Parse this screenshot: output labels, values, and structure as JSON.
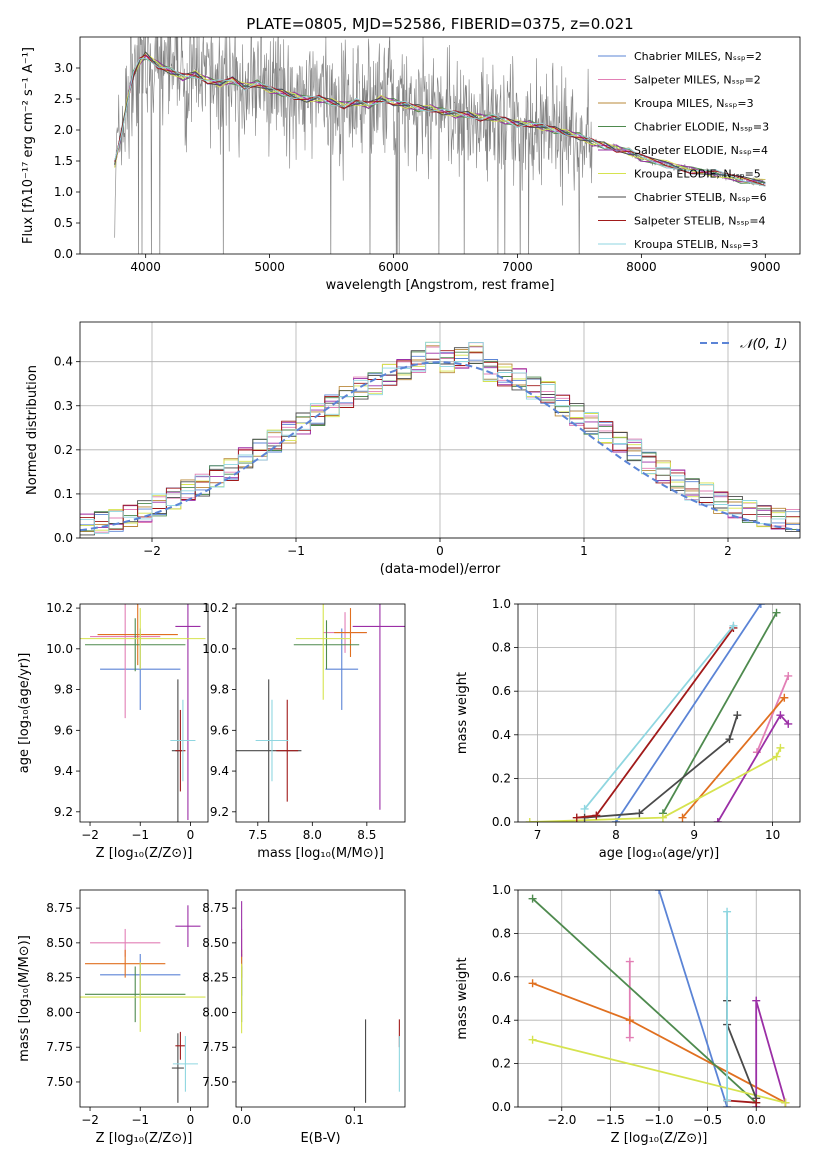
{
  "chart_data": [
    {
      "type": "line",
      "title": "PLATE=0805, MJD=52586, FIBERID=0375, z=0.021",
      "xlabel": "wavelength [Angstrom, rest frame]",
      "ylabel": "Flux [fλ10⁻¹⁷ erg cm⁻² s⁻¹ A⁻¹]",
      "xlim": [
        3470,
        9280
      ],
      "ylim": [
        0,
        3.5
      ],
      "xticks": [
        "4000",
        "5000",
        "6000",
        "7000",
        "8000",
        "9000"
      ],
      "yticks": [
        "0.0",
        "0.5",
        "1.0",
        "1.5",
        "2.0",
        "2.5",
        "3.0"
      ],
      "grid": false,
      "legend_position": "top-right",
      "legend": [
        {
          "label": "Chabrier MILES, Nₛₛₚ=2",
          "color": "#5b84d6"
        },
        {
          "label": "Salpeter MILES, Nₛₛₚ=2",
          "color": "#e27fb5"
        },
        {
          "label": "Kroupa MILES, Nₛₛₚ=3",
          "color": "#b9883a"
        },
        {
          "label": "Chabrier ELODIE, Nₛₛₚ=3",
          "color": "#4e8a4e"
        },
        {
          "label": "Salpeter ELODIE, Nₛₛₚ=4",
          "color": "#9b2fa6"
        },
        {
          "label": "Kroupa ELODIE, Nₛₛₚ=5",
          "color": "#d6e34f"
        },
        {
          "label": "Chabrier STELIB, Nₛₛₚ=6",
          "color": "#4a4a4a"
        },
        {
          "label": "Salpeter STELIB, Nₛₛₚ=4",
          "color": "#a11a1a"
        },
        {
          "label": "Kroupa STELIB, Nₛₛₚ=3",
          "color": "#8fd6e0"
        }
      ],
      "data_color": "#808080",
      "continuum": {
        "x": [
          3750,
          3800,
          3850,
          3900,
          3950,
          4000,
          4100,
          4200,
          4300,
          4400,
          4500,
          4600,
          4700,
          4800,
          4900,
          5000,
          5100,
          5200,
          5300,
          5400,
          5500,
          5600,
          5700,
          5800,
          5900,
          6000,
          6100,
          6200,
          6300,
          6400,
          6500,
          6600,
          6700,
          6800,
          6900,
          7000,
          7100,
          7200,
          7300,
          7400,
          7500,
          7600,
          7700,
          7800,
          7900,
          8000,
          8200,
          8400,
          8600,
          8800,
          9000
        ],
        "y": [
          1.45,
          1.9,
          2.45,
          2.9,
          3.1,
          3.2,
          3.05,
          2.95,
          2.85,
          2.9,
          2.8,
          2.75,
          2.8,
          2.7,
          2.75,
          2.65,
          2.6,
          2.55,
          2.5,
          2.5,
          2.45,
          2.4,
          2.45,
          2.4,
          2.5,
          2.45,
          2.4,
          2.35,
          2.35,
          2.3,
          2.25,
          2.25,
          2.2,
          2.2,
          2.15,
          2.1,
          2.1,
          2.05,
          2.0,
          1.95,
          1.9,
          1.8,
          1.75,
          1.7,
          1.65,
          1.55,
          1.45,
          1.35,
          1.3,
          1.2,
          1.15
        ]
      }
    },
    {
      "type": "histogram",
      "xlabel": "(data-model)/error",
      "ylabel": "Normed distribution",
      "xlim": [
        -2.5,
        2.5
      ],
      "ylim": [
        0,
        0.49
      ],
      "xticks": [
        "−2",
        "−1",
        "0",
        "1",
        "2"
      ],
      "yticks": [
        "0.0",
        "0.1",
        "0.2",
        "0.3",
        "0.4"
      ],
      "grid": true,
      "legend": [
        {
          "label": "𝒩(0, 1)",
          "color": "#5b84d6"
        }
      ],
      "legend_position": "top-right",
      "bin_width": 0.1,
      "bin_start": -2.5,
      "values": [
        0.03,
        0.035,
        0.04,
        0.05,
        0.06,
        0.075,
        0.09,
        0.11,
        0.12,
        0.14,
        0.155,
        0.18,
        0.2,
        0.22,
        0.24,
        0.26,
        0.28,
        0.3,
        0.32,
        0.34,
        0.35,
        0.37,
        0.38,
        0.4,
        0.42,
        0.4,
        0.41,
        0.42,
        0.38,
        0.37,
        0.36,
        0.34,
        0.33,
        0.3,
        0.28,
        0.26,
        0.24,
        0.22,
        0.2,
        0.17,
        0.15,
        0.13,
        0.11,
        0.1,
        0.08,
        0.07,
        0.06,
        0.05,
        0.045,
        0.04
      ]
    },
    {
      "type": "scatter",
      "xlabel": "Z [log₁₀(Z/Z⊙)]",
      "ylabel": "age  [log₁₀(age/yr)]",
      "xlim": [
        -2.2,
        0.35
      ],
      "ylim": [
        9.15,
        10.22
      ],
      "xticks": [
        "−2",
        "−1",
        "0"
      ],
      "yticks": [
        "9.2",
        "9.4",
        "9.6",
        "9.8",
        "10.0",
        "10.2"
      ],
      "points": [
        {
          "x": -1.0,
          "y": 9.9,
          "xerr": 0.8,
          "yerr": 0.2,
          "color": "#5b84d6"
        },
        {
          "x": -1.3,
          "y": 10.06,
          "xerr": 0.7,
          "yerr": 0.4,
          "color": "#e27fb5"
        },
        {
          "x": -1.05,
          "y": 10.07,
          "xerr": 0.8,
          "yerr": 0.15,
          "color": "#e07020"
        },
        {
          "x": -1.1,
          "y": 10.02,
          "xerr": 1.0,
          "yerr": 0.13,
          "color": "#4e8a4e"
        },
        {
          "x": -0.05,
          "y": 10.11,
          "xerr": 0.25,
          "yerr": 0.95,
          "color": "#9b2fa6"
        },
        {
          "x": -1.0,
          "y": 10.05,
          "xerr": 1.3,
          "yerr": 0.15,
          "color": "#d6e34f"
        },
        {
          "x": -0.25,
          "y": 9.5,
          "xerr": 0.12,
          "yerr": 0.35,
          "color": "#4a4a4a"
        },
        {
          "x": -0.2,
          "y": 9.5,
          "xerr": 0.1,
          "yerr": 0.2,
          "color": "#a11a1a"
        },
        {
          "x": -0.15,
          "y": 9.55,
          "xerr": 0.25,
          "yerr": 0.2,
          "color": "#8fd6e0"
        }
      ]
    },
    {
      "type": "scatter",
      "xlabel": "mass [log₁₀(M/M⊙)]",
      "ylabel": "",
      "xlim": [
        7.3,
        8.85
      ],
      "ylim": [
        9.15,
        10.22
      ],
      "xticks": [
        "7.5",
        "8.0",
        "8.5"
      ],
      "yticks": [
        "9.2",
        "9.4",
        "9.6",
        "9.8",
        "10.0",
        "10.2"
      ],
      "points": [
        {
          "x": 8.27,
          "y": 9.9,
          "xerr": 0.15,
          "yerr": 0.2,
          "color": "#5b84d6"
        },
        {
          "x": 8.3,
          "y": 10.08,
          "xerr": 0.2,
          "yerr": 0.1,
          "color": "#e27fb5"
        },
        {
          "x": 8.35,
          "y": 10.08,
          "xerr": 0.15,
          "yerr": 0.12,
          "color": "#e07020"
        },
        {
          "x": 8.13,
          "y": 10.02,
          "xerr": 0.3,
          "yerr": 0.12,
          "color": "#4e8a4e"
        },
        {
          "x": 8.62,
          "y": 10.11,
          "xerr": 0.25,
          "yerr": 0.9,
          "color": "#9b2fa6"
        },
        {
          "x": 8.1,
          "y": 10.05,
          "xerr": 0.25,
          "yerr": 0.3,
          "color": "#d6e34f"
        },
        {
          "x": 7.6,
          "y": 9.5,
          "xerr": 0.3,
          "yerr": 0.35,
          "color": "#4a4a4a"
        },
        {
          "x": 7.77,
          "y": 9.5,
          "xerr": 0.1,
          "yerr": 0.25,
          "color": "#a11a1a"
        },
        {
          "x": 7.63,
          "y": 9.55,
          "xerr": 0.15,
          "yerr": 0.2,
          "color": "#8fd6e0"
        }
      ]
    },
    {
      "type": "line",
      "xlabel": "age  [log₁₀(age/yr)]",
      "ylabel": "mass weight",
      "xlim": [
        6.75,
        10.35
      ],
      "ylim": [
        0,
        1.0
      ],
      "xticks": [
        "7",
        "8",
        "9",
        "10"
      ],
      "yticks": [
        "0.0",
        "0.2",
        "0.4",
        "0.6",
        "0.8",
        "1.0"
      ],
      "grid": true,
      "series": [
        {
          "x": [
            8.0,
            9.85
          ],
          "y": [
            0.0,
            1.0
          ],
          "color": "#5b84d6"
        },
        {
          "x": [
            9.8,
            10.2
          ],
          "y": [
            0.32,
            0.67
          ],
          "color": "#e27fb5"
        },
        {
          "x": [
            8.85,
            10.15
          ],
          "y": [
            0.02,
            0.57
          ],
          "color": "#e07020"
        },
        {
          "x": [
            8.6,
            10.05
          ],
          "y": [
            0.04,
            0.96
          ],
          "color": "#4e8a4e"
        },
        {
          "x": [
            9.3,
            10.1,
            10.2
          ],
          "y": [
            0.0,
            0.49,
            0.45
          ],
          "color": "#9b2fa6"
        },
        {
          "x": [
            6.9,
            8.6,
            10.05,
            10.1
          ],
          "y": [
            0.0,
            0.02,
            0.3,
            0.34
          ],
          "color": "#d6e34f"
        },
        {
          "x": [
            7.6,
            8.3,
            9.45,
            9.55
          ],
          "y": [
            0.02,
            0.04,
            0.38,
            0.49
          ],
          "color": "#4a4a4a"
        },
        {
          "x": [
            7.5,
            7.75,
            9.5
          ],
          "y": [
            0.02,
            0.03,
            0.89
          ],
          "color": "#a11a1a"
        },
        {
          "x": [
            7.6,
            9.5
          ],
          "y": [
            0.06,
            0.9
          ],
          "color": "#8fd6e0"
        }
      ]
    },
    {
      "type": "scatter",
      "xlabel": "Z [log₁₀(Z/Z⊙)]",
      "ylabel": "mass [log₁₀(M/M⊙)]",
      "xlim": [
        -2.2,
        0.35
      ],
      "ylim": [
        7.32,
        8.88
      ],
      "xticks": [
        "−2",
        "−1",
        "0"
      ],
      "yticks": [
        "7.50",
        "7.75",
        "8.00",
        "8.25",
        "8.50",
        "8.75"
      ],
      "points": [
        {
          "x": -1.0,
          "y": 8.27,
          "xerr": 0.8,
          "yerr": 0.15,
          "color": "#5b84d6"
        },
        {
          "x": -1.3,
          "y": 8.5,
          "xerr": 0.7,
          "yerr": 0.1,
          "color": "#e27fb5"
        },
        {
          "x": -1.3,
          "y": 8.35,
          "xerr": 0.8,
          "yerr": 0.1,
          "color": "#e07020"
        },
        {
          "x": -1.1,
          "y": 8.13,
          "xerr": 1.0,
          "yerr": 0.2,
          "color": "#4e8a4e"
        },
        {
          "x": -0.05,
          "y": 8.62,
          "xerr": 0.25,
          "yerr": 0.15,
          "color": "#9b2fa6"
        },
        {
          "x": -1.0,
          "y": 8.11,
          "xerr": 1.3,
          "yerr": 0.25,
          "color": "#d6e34f"
        },
        {
          "x": -0.25,
          "y": 7.6,
          "xerr": 0.12,
          "yerr": 0.25,
          "color": "#4a4a4a"
        },
        {
          "x": -0.2,
          "y": 7.76,
          "xerr": 0.1,
          "yerr": 0.1,
          "color": "#a11a1a"
        },
        {
          "x": -0.1,
          "y": 7.63,
          "xerr": 0.25,
          "yerr": 0.2,
          "color": "#8fd6e0"
        }
      ]
    },
    {
      "type": "scatter",
      "xlabel": "E(B-V)",
      "ylabel": "",
      "xlim": [
        -0.005,
        0.145
      ],
      "ylim": [
        7.32,
        8.88
      ],
      "xticks": [
        "0.0",
        "0.1"
      ],
      "yticks": [
        "7.50",
        "7.75",
        "8.00",
        "8.25",
        "8.50",
        "8.75"
      ],
      "points": [
        {
          "x": 0.0,
          "y": 8.27,
          "xerr": 0,
          "yerr": 0.15,
          "color": "#5b84d6"
        },
        {
          "x": 0.0,
          "y": 8.5,
          "xerr": 0,
          "yerr": 0.1,
          "color": "#e27fb5"
        },
        {
          "x": 0.0,
          "y": 8.35,
          "xerr": 0,
          "yerr": 0.1,
          "color": "#e07020"
        },
        {
          "x": 0.0,
          "y": 8.13,
          "xerr": 0,
          "yerr": 0.2,
          "color": "#4e8a4e"
        },
        {
          "x": 0.0,
          "y": 8.6,
          "xerr": 0,
          "yerr": 0.2,
          "color": "#9b2fa6"
        },
        {
          "x": 0.0,
          "y": 8.1,
          "xerr": 0,
          "yerr": 0.25,
          "color": "#d6e34f"
        },
        {
          "x": 0.11,
          "y": 7.65,
          "xerr": 0,
          "yerr": 0.3,
          "color": "#4a4a4a"
        },
        {
          "x": 0.14,
          "y": 7.85,
          "xerr": 0,
          "yerr": 0.1,
          "color": "#a11a1a"
        },
        {
          "x": 0.14,
          "y": 7.63,
          "xerr": 0,
          "yerr": 0.2,
          "color": "#8fd6e0"
        }
      ]
    },
    {
      "type": "line",
      "xlabel": "Z [log₁₀(Z/Z⊙)]",
      "ylabel": "mass weight",
      "xlim": [
        -2.45,
        0.45
      ],
      "ylim": [
        0,
        1.0
      ],
      "xticks": [
        "−2.0",
        "−1.5",
        "−1.0",
        "−0.5",
        "0.0"
      ],
      "yticks": [
        "0.0",
        "0.2",
        "0.4",
        "0.6",
        "0.8",
        "1.0"
      ],
      "grid": true,
      "series": [
        {
          "x": [
            -1.0,
            -0.3
          ],
          "y": [
            1.0,
            0.0
          ],
          "color": "#5b84d6"
        },
        {
          "x": [
            -1.3,
            -1.3,
            -1.3
          ],
          "y": [
            0.32,
            0.4,
            0.67
          ],
          "color": "#e27fb5"
        },
        {
          "x": [
            -2.3,
            -1.3,
            0.3
          ],
          "y": [
            0.57,
            0.4,
            0.02
          ],
          "color": "#e07020"
        },
        {
          "x": [
            -2.3,
            0.0
          ],
          "y": [
            0.96,
            0.02
          ],
          "color": "#4e8a4e"
        },
        {
          "x": [
            0.0,
            0.0,
            0.3
          ],
          "y": [
            0.0,
            0.49,
            0.02
          ],
          "color": "#9b2fa6"
        },
        {
          "x": [
            -2.3,
            0.3
          ],
          "y": [
            0.31,
            0.02
          ],
          "color": "#d6e34f"
        },
        {
          "x": [
            -0.3,
            -0.3,
            0.0
          ],
          "y": [
            0.49,
            0.38,
            0.04
          ],
          "color": "#4a4a4a"
        },
        {
          "x": [
            -0.3,
            0.0
          ],
          "y": [
            0.03,
            0.02
          ],
          "color": "#a11a1a"
        },
        {
          "x": [
            -0.3,
            -0.3
          ],
          "y": [
            0.9,
            0.03
          ],
          "color": "#8fd6e0"
        }
      ]
    }
  ]
}
